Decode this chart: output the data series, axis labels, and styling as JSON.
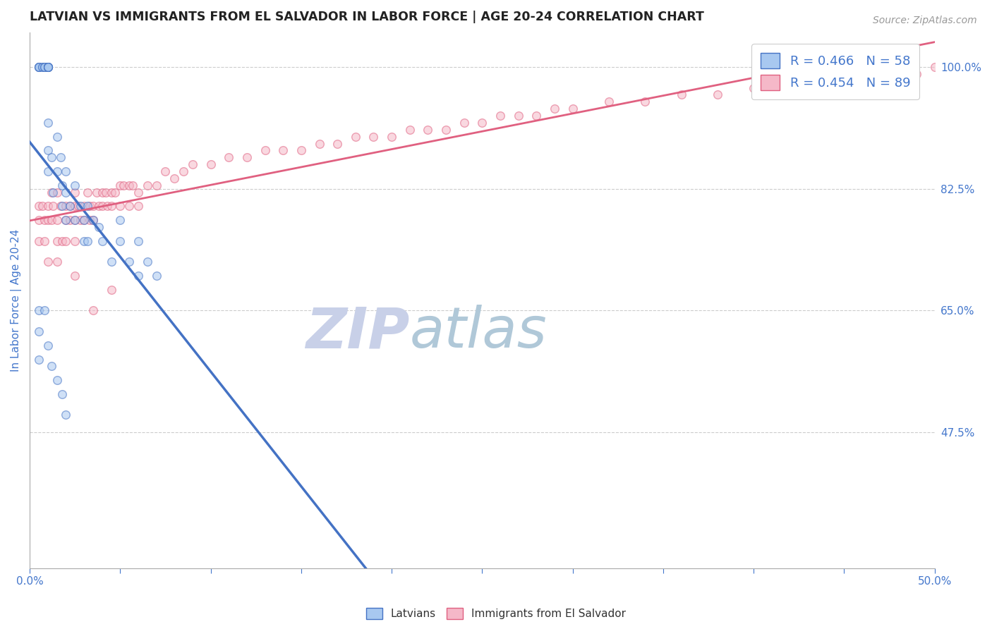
{
  "title": "LATVIAN VS IMMIGRANTS FROM EL SALVADOR IN LABOR FORCE | AGE 20-24 CORRELATION CHART",
  "source_text": "Source: ZipAtlas.com",
  "ylabel": "In Labor Force | Age 20-24",
  "xlim": [
    0.0,
    0.5
  ],
  "ylim": [
    0.28,
    1.05
  ],
  "xticks": [
    0.0,
    0.05,
    0.1,
    0.15,
    0.2,
    0.25,
    0.3,
    0.35,
    0.4,
    0.45,
    0.5
  ],
  "xticklabels": [
    "0.0%",
    "",
    "",
    "",
    "",
    "",
    "",
    "",
    "",
    "",
    "50.0%"
  ],
  "yticks_right": [
    0.475,
    0.65,
    0.825,
    1.0
  ],
  "yticklabels_right": [
    "47.5%",
    "65.0%",
    "82.5%",
    "100.0%"
  ],
  "grid_color": "#cccccc",
  "background_color": "#ffffff",
  "latvian_color": "#a8c8f0",
  "salvador_color": "#f5b8c8",
  "latvian_line_color": "#4472c4",
  "salvador_line_color": "#e06080",
  "title_color": "#222222",
  "tick_color": "#4477cc",
  "watermark_zip_color": "#c8d0e8",
  "watermark_atlas_color": "#b0c8d8",
  "marker_size": 70,
  "marker_alpha": 0.55,
  "line_width": 2.0,
  "latvian_x": [
    0.005,
    0.005,
    0.005,
    0.005,
    0.005,
    0.007,
    0.007,
    0.008,
    0.008,
    0.008,
    0.01,
    0.01,
    0.01,
    0.01,
    0.01,
    0.01,
    0.01,
    0.01,
    0.01,
    0.01,
    0.012,
    0.013,
    0.015,
    0.015,
    0.017,
    0.018,
    0.018,
    0.02,
    0.02,
    0.02,
    0.022,
    0.025,
    0.025,
    0.028,
    0.03,
    0.03,
    0.032,
    0.032,
    0.035,
    0.038,
    0.04,
    0.045,
    0.05,
    0.05,
    0.055,
    0.06,
    0.06,
    0.065,
    0.07,
    0.005,
    0.005,
    0.005,
    0.008,
    0.01,
    0.012,
    0.015,
    0.018,
    0.02
  ],
  "latvian_y": [
    1.0,
    1.0,
    1.0,
    1.0,
    1.0,
    1.0,
    1.0,
    1.0,
    1.0,
    1.0,
    1.0,
    1.0,
    1.0,
    1.0,
    1.0,
    1.0,
    1.0,
    0.92,
    0.88,
    0.85,
    0.87,
    0.82,
    0.9,
    0.85,
    0.87,
    0.83,
    0.8,
    0.85,
    0.82,
    0.78,
    0.8,
    0.83,
    0.78,
    0.8,
    0.78,
    0.75,
    0.8,
    0.75,
    0.78,
    0.77,
    0.75,
    0.72,
    0.78,
    0.75,
    0.72,
    0.75,
    0.7,
    0.72,
    0.7,
    0.65,
    0.62,
    0.58,
    0.65,
    0.6,
    0.57,
    0.55,
    0.53,
    0.5
  ],
  "salvador_x": [
    0.005,
    0.005,
    0.005,
    0.007,
    0.008,
    0.008,
    0.01,
    0.01,
    0.01,
    0.012,
    0.012,
    0.013,
    0.015,
    0.015,
    0.015,
    0.015,
    0.017,
    0.018,
    0.02,
    0.02,
    0.02,
    0.022,
    0.022,
    0.025,
    0.025,
    0.025,
    0.025,
    0.027,
    0.028,
    0.03,
    0.03,
    0.032,
    0.033,
    0.033,
    0.035,
    0.035,
    0.037,
    0.038,
    0.04,
    0.04,
    0.042,
    0.043,
    0.045,
    0.045,
    0.047,
    0.05,
    0.05,
    0.052,
    0.055,
    0.055,
    0.057,
    0.06,
    0.06,
    0.065,
    0.07,
    0.075,
    0.08,
    0.085,
    0.09,
    0.1,
    0.11,
    0.12,
    0.13,
    0.14,
    0.15,
    0.16,
    0.17,
    0.18,
    0.19,
    0.2,
    0.21,
    0.22,
    0.23,
    0.24,
    0.25,
    0.26,
    0.27,
    0.28,
    0.29,
    0.3,
    0.32,
    0.34,
    0.36,
    0.38,
    0.4,
    0.43,
    0.47,
    0.49,
    0.5,
    0.025,
    0.035,
    0.045
  ],
  "salvador_y": [
    0.8,
    0.78,
    0.75,
    0.8,
    0.78,
    0.75,
    0.8,
    0.78,
    0.72,
    0.82,
    0.78,
    0.8,
    0.82,
    0.78,
    0.75,
    0.72,
    0.8,
    0.75,
    0.8,
    0.78,
    0.75,
    0.8,
    0.78,
    0.82,
    0.8,
    0.78,
    0.75,
    0.8,
    0.78,
    0.8,
    0.78,
    0.82,
    0.8,
    0.78,
    0.8,
    0.78,
    0.82,
    0.8,
    0.82,
    0.8,
    0.82,
    0.8,
    0.82,
    0.8,
    0.82,
    0.83,
    0.8,
    0.83,
    0.83,
    0.8,
    0.83,
    0.82,
    0.8,
    0.83,
    0.83,
    0.85,
    0.84,
    0.85,
    0.86,
    0.86,
    0.87,
    0.87,
    0.88,
    0.88,
    0.88,
    0.89,
    0.89,
    0.9,
    0.9,
    0.9,
    0.91,
    0.91,
    0.91,
    0.92,
    0.92,
    0.93,
    0.93,
    0.93,
    0.94,
    0.94,
    0.95,
    0.95,
    0.96,
    0.96,
    0.97,
    0.97,
    0.98,
    0.99,
    1.0,
    0.7,
    0.65,
    0.68
  ]
}
